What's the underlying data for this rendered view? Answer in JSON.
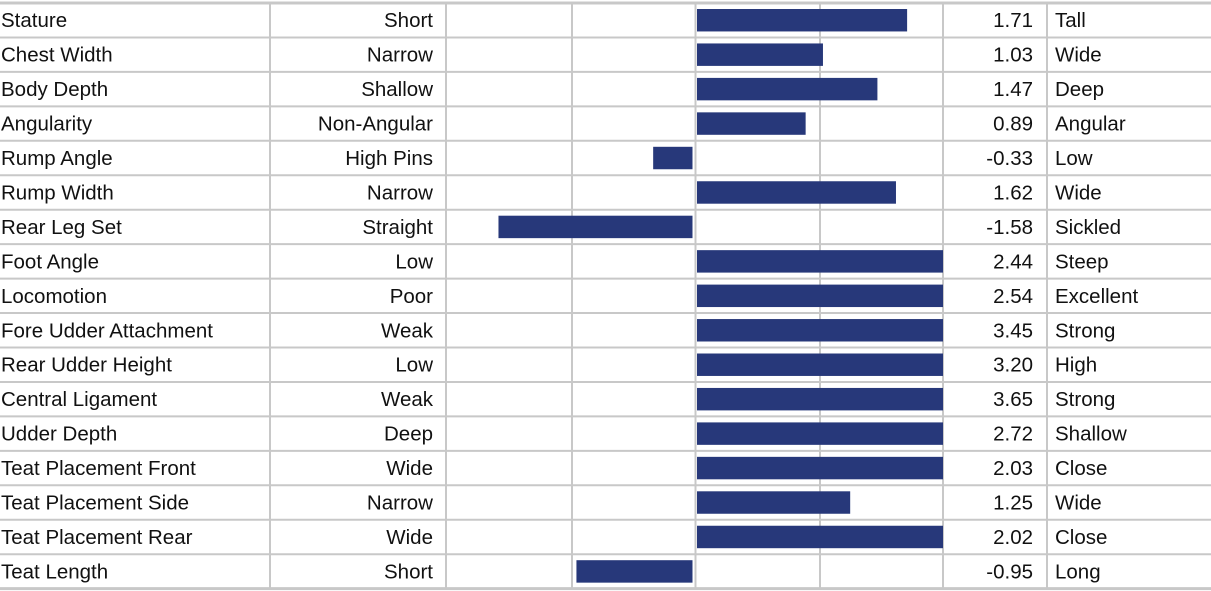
{
  "chart_data": {
    "type": "bar",
    "orientation": "horizontal",
    "title": "",
    "xlabel": "",
    "ylabel": "",
    "xlim": [
      -2,
      2
    ],
    "grid": true,
    "bar_color": "#27387a",
    "traits": [
      {
        "trait": "Stature",
        "low": "Short",
        "value": 1.71,
        "display": "1.71",
        "high": "Tall"
      },
      {
        "trait": "Chest Width",
        "low": "Narrow",
        "value": 1.03,
        "display": "1.03",
        "high": "Wide"
      },
      {
        "trait": "Body Depth",
        "low": "Shallow",
        "value": 1.47,
        "display": "1.47",
        "high": "Deep"
      },
      {
        "trait": "Angularity",
        "low": "Non-Angular",
        "value": 0.89,
        "display": "0.89",
        "high": "Angular"
      },
      {
        "trait": "Rump Angle",
        "low": "High Pins",
        "value": -0.33,
        "display": "-0.33",
        "high": "Low"
      },
      {
        "trait": "Rump Width",
        "low": "Narrow",
        "value": 1.62,
        "display": "1.62",
        "high": "Wide"
      },
      {
        "trait": "Rear Leg Set",
        "low": "Straight",
        "value": -1.58,
        "display": "-1.58",
        "high": "Sickled"
      },
      {
        "trait": "Foot Angle",
        "low": "Low",
        "value": 2.44,
        "display": "2.44",
        "high": "Steep"
      },
      {
        "trait": "Locomotion",
        "low": "Poor",
        "value": 2.54,
        "display": "2.54",
        "high": "Excellent"
      },
      {
        "trait": "Fore Udder Attachment",
        "low": "Weak",
        "value": 3.45,
        "display": "3.45",
        "high": "Strong"
      },
      {
        "trait": "Rear Udder Height",
        "low": "Low",
        "value": 3.2,
        "display": "3.20",
        "high": "High"
      },
      {
        "trait": "Central Ligament",
        "low": "Weak",
        "value": 3.65,
        "display": "3.65",
        "high": "Strong"
      },
      {
        "trait": "Udder Depth",
        "low": "Deep",
        "value": 2.72,
        "display": "2.72",
        "high": "Shallow"
      },
      {
        "trait": "Teat Placement Front",
        "low": "Wide",
        "value": 2.03,
        "display": "2.03",
        "high": "Close"
      },
      {
        "trait": "Teat Placement Side",
        "low": "Narrow",
        "value": 1.25,
        "display": "1.25",
        "high": "Wide"
      },
      {
        "trait": "Teat Placement Rear",
        "low": "Wide",
        "value": 2.02,
        "display": "2.02",
        "high": "Close"
      },
      {
        "trait": "Teat Length",
        "low": "Short",
        "value": -0.95,
        "display": "-0.95",
        "high": "Long"
      }
    ]
  }
}
